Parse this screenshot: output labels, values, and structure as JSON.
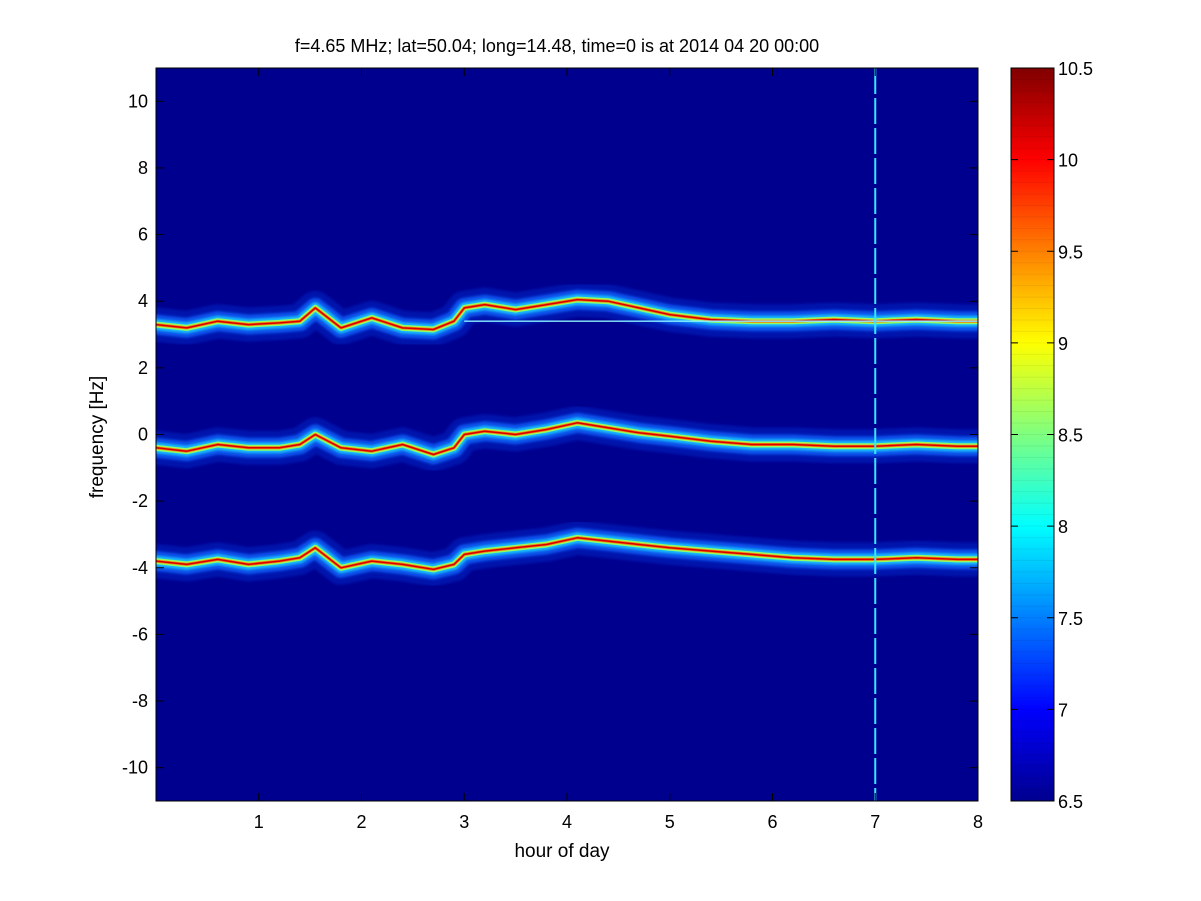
{
  "chart_data": {
    "type": "heatmap",
    "title": "f=4.65 MHz;  lat=50.04; long=14.48, time=0 is at 2014 04 20 00:00",
    "xlabel": "hour of day",
    "ylabel": "frequency [Hz]",
    "xlim": [
      0,
      8
    ],
    "ylim": [
      -11,
      11
    ],
    "xticks": [
      1,
      2,
      3,
      4,
      5,
      6,
      7,
      8
    ],
    "yticks": [
      -10,
      -8,
      -6,
      -4,
      -2,
      0,
      2,
      4,
      6,
      8,
      10
    ],
    "colorbar": {
      "colormap": "jet",
      "range": [
        6.5,
        10.5
      ],
      "ticks": [
        6.5,
        7,
        7.5,
        8,
        8.5,
        9,
        9.5,
        10,
        10.5
      ]
    },
    "grid": false,
    "traces": [
      {
        "x": [
          0,
          0.3,
          0.6,
          0.9,
          1.2,
          1.4,
          1.55,
          1.8,
          2.1,
          2.4,
          2.7,
          2.9,
          3.0,
          3.2,
          3.5,
          3.8,
          4.1,
          4.4,
          4.7,
          5.0,
          5.4,
          5.8,
          6.2,
          6.6,
          7.0,
          7.4,
          7.8,
          8.0
        ],
        "y": [
          3.3,
          3.2,
          3.4,
          3.3,
          3.35,
          3.4,
          3.8,
          3.2,
          3.5,
          3.2,
          3.15,
          3.4,
          3.8,
          3.9,
          3.75,
          3.9,
          4.05,
          4.0,
          3.8,
          3.6,
          3.45,
          3.4,
          3.4,
          3.45,
          3.4,
          3.45,
          3.4,
          3.4
        ]
      },
      {
        "x": [
          0,
          0.3,
          0.6,
          0.9,
          1.2,
          1.4,
          1.55,
          1.8,
          2.1,
          2.4,
          2.7,
          2.9,
          3.0,
          3.2,
          3.5,
          3.8,
          4.1,
          4.4,
          4.7,
          5.0,
          5.4,
          5.8,
          6.2,
          6.6,
          7.0,
          7.4,
          7.8,
          8.0
        ],
        "y": [
          -0.4,
          -0.5,
          -0.3,
          -0.4,
          -0.4,
          -0.3,
          0.0,
          -0.4,
          -0.5,
          -0.3,
          -0.6,
          -0.4,
          0.0,
          0.1,
          0.0,
          0.15,
          0.35,
          0.2,
          0.05,
          -0.05,
          -0.2,
          -0.3,
          -0.3,
          -0.35,
          -0.35,
          -0.3,
          -0.35,
          -0.35
        ]
      },
      {
        "x": [
          0,
          0.3,
          0.6,
          0.9,
          1.2,
          1.4,
          1.55,
          1.8,
          2.1,
          2.4,
          2.7,
          2.9,
          3.0,
          3.2,
          3.5,
          3.8,
          4.1,
          4.4,
          4.7,
          5.0,
          5.4,
          5.8,
          6.2,
          6.6,
          7.0,
          7.4,
          7.8,
          8.0
        ],
        "y": [
          -3.8,
          -3.9,
          -3.75,
          -3.9,
          -3.8,
          -3.7,
          -3.4,
          -4.0,
          -3.8,
          -3.9,
          -4.05,
          -3.9,
          -3.6,
          -3.5,
          -3.4,
          -3.3,
          -3.1,
          -3.2,
          -3.3,
          -3.4,
          -3.5,
          -3.6,
          -3.7,
          -3.75,
          -3.75,
          -3.7,
          -3.75,
          -3.75
        ]
      }
    ],
    "reference_line": {
      "y": 3.4,
      "x_start": 3.0,
      "x_end": 8.0
    },
    "vertical_line": {
      "x": 7.0
    }
  }
}
